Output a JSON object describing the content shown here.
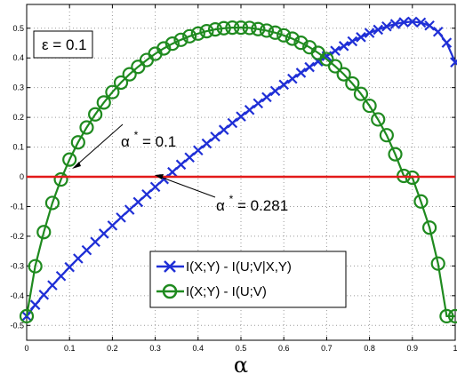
{
  "chart_data": {
    "type": "line",
    "xlabel": "α",
    "xlim": [
      0,
      1
    ],
    "ylim": [
      -0.55,
      0.58
    ],
    "xticks": [
      0,
      0.1,
      0.2,
      0.3,
      0.4,
      0.5,
      0.6,
      0.7,
      0.8,
      0.9,
      1
    ],
    "xtick_labels": [
      "0",
      "0.1",
      "0.2",
      "0.3",
      "0.4",
      "0.5",
      "0.6",
      "0.7",
      "0.8",
      "0.9",
      "1"
    ],
    "yticks": [
      -0.5,
      -0.4,
      -0.3,
      -0.2,
      -0.1,
      0,
      0.1,
      0.2,
      0.3,
      0.4,
      0.5
    ],
    "ytick_labels": [
      "-0.5",
      "-0.4",
      "-0.3",
      "-0.2",
      "-0.1",
      "0",
      "0.1",
      "0.2",
      "0.3",
      "0.4",
      "0.5"
    ],
    "grid": true,
    "legend_position": "lower-center",
    "series": [
      {
        "name": "I(X;Y) - I(U;V|X,Y)",
        "color": "#1f2fd6",
        "marker": "x",
        "x": [
          0,
          0.02,
          0.04,
          0.06,
          0.08,
          0.1,
          0.12,
          0.14,
          0.16,
          0.18,
          0.2,
          0.22,
          0.24,
          0.26,
          0.28,
          0.3,
          0.32,
          0.34,
          0.36,
          0.38,
          0.4,
          0.42,
          0.44,
          0.46,
          0.48,
          0.5,
          0.52,
          0.54,
          0.56,
          0.58,
          0.6,
          0.62,
          0.64,
          0.66,
          0.68,
          0.7,
          0.72,
          0.74,
          0.76,
          0.78,
          0.8,
          0.82,
          0.84,
          0.86,
          0.88,
          0.9,
          0.92,
          0.94,
          0.96,
          0.98,
          1
        ],
        "y": [
          -0.469,
          -0.431,
          -0.397,
          -0.365,
          -0.334,
          -0.304,
          -0.275,
          -0.247,
          -0.219,
          -0.191,
          -0.164,
          -0.137,
          -0.111,
          -0.085,
          -0.059,
          -0.034,
          -0.008,
          0.016,
          0.041,
          0.065,
          0.089,
          0.112,
          0.135,
          0.158,
          0.181,
          0.203,
          0.225,
          0.247,
          0.268,
          0.289,
          0.31,
          0.33,
          0.35,
          0.369,
          0.388,
          0.406,
          0.424,
          0.44,
          0.456,
          0.47,
          0.484,
          0.495,
          0.506,
          0.514,
          0.52,
          0.522,
          0.519,
          0.509,
          0.488,
          0.451,
          0.385
        ]
      },
      {
        "name": "I(X;Y) - I(U;V)",
        "color": "#1f8a1f",
        "marker": "o",
        "x": [
          0,
          0.02,
          0.04,
          0.06,
          0.08,
          0.1,
          0.12,
          0.14,
          0.16,
          0.18,
          0.2,
          0.22,
          0.24,
          0.26,
          0.28,
          0.3,
          0.32,
          0.34,
          0.36,
          0.38,
          0.4,
          0.42,
          0.44,
          0.46,
          0.48,
          0.5,
          0.52,
          0.54,
          0.56,
          0.58,
          0.6,
          0.62,
          0.64,
          0.66,
          0.68,
          0.7,
          0.72,
          0.74,
          0.76,
          0.78,
          0.8,
          0.82,
          0.84,
          0.86,
          0.88,
          0.9,
          0.92,
          0.94,
          0.96,
          0.98,
          1
        ],
        "y": [
          -0.469,
          -0.301,
          -0.186,
          -0.088,
          -0.009,
          0.058,
          0.116,
          0.166,
          0.21,
          0.25,
          0.285,
          0.317,
          0.345,
          0.37,
          0.393,
          0.414,
          0.432,
          0.448,
          0.461,
          0.473,
          0.482,
          0.49,
          0.496,
          0.5,
          0.502,
          0.502,
          0.501,
          0.497,
          0.492,
          0.485,
          0.476,
          0.465,
          0.451,
          0.436,
          0.417,
          0.396,
          0.372,
          0.345,
          0.314,
          0.279,
          0.239,
          0.193,
          0.14,
          0.076,
          0.003,
          -0.003,
          -0.083,
          -0.171,
          -0.292,
          -0.469,
          -0.469
        ]
      },
      {
        "name": "",
        "color": "#e31a1a",
        "marker": "none",
        "x": [
          0,
          1
        ],
        "y": [
          0,
          0
        ]
      }
    ],
    "annotations": [
      {
        "symbol": "α",
        "superscript": "*",
        "text": " = 0.1",
        "point": [
          0.1,
          0
        ]
      },
      {
        "symbol": "α",
        "superscript": "*",
        "text": " = 0.281",
        "point": [
          0.281,
          0
        ]
      }
    ],
    "param_box": "ε = 0.1"
  }
}
